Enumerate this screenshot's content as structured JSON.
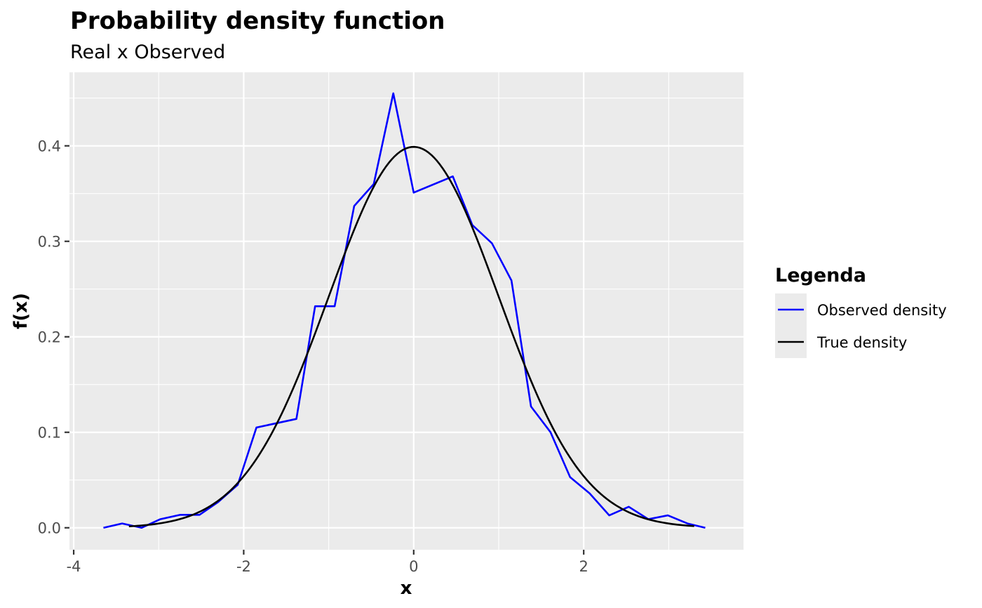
{
  "chart_data": {
    "type": "line",
    "title": "Probability density function",
    "subtitle": "Real x Observed",
    "xlabel": "x",
    "ylabel": "f(x)",
    "xlim": [
      -4.05,
      3.88
    ],
    "ylim": [
      -0.023,
      0.477
    ],
    "x_ticks": [
      -4,
      -2,
      0,
      2
    ],
    "x_tick_labels": [
      "-4",
      "-2",
      "0",
      "2"
    ],
    "y_ticks": [
      0.0,
      0.1,
      0.2,
      0.3,
      0.4
    ],
    "y_tick_labels": [
      "0.0",
      "0.1",
      "0.2",
      "0.3",
      "0.4"
    ],
    "grid": true,
    "legend": {
      "title": "Legenda",
      "position": "right",
      "entries": [
        {
          "label": "Observed density",
          "color": "#0000ff"
        },
        {
          "label": "True density",
          "color": "#000000"
        }
      ]
    },
    "series": [
      {
        "name": "Observed density",
        "color": "#0000ff",
        "points": [
          [
            -3.65,
            0.0
          ],
          [
            -3.43,
            0.0045
          ],
          [
            -3.2,
            0.0
          ],
          [
            -2.98,
            0.009
          ],
          [
            -2.75,
            0.0135
          ],
          [
            -2.52,
            0.0135
          ],
          [
            -2.3,
            0.027
          ],
          [
            -2.07,
            0.045
          ],
          [
            -1.85,
            0.105
          ],
          [
            -1.38,
            0.114
          ],
          [
            -1.16,
            0.232
          ],
          [
            -0.93,
            0.232
          ],
          [
            -0.7,
            0.337
          ],
          [
            -0.47,
            0.36
          ],
          [
            -0.24,
            0.455
          ],
          [
            0.0,
            0.351
          ],
          [
            0.46,
            0.368
          ],
          [
            0.69,
            0.317
          ],
          [
            0.92,
            0.298
          ],
          [
            1.15,
            0.259
          ],
          [
            1.38,
            0.127
          ],
          [
            1.61,
            0.1
          ],
          [
            1.84,
            0.053
          ],
          [
            2.07,
            0.036
          ],
          [
            2.3,
            0.013
          ],
          [
            2.53,
            0.022
          ],
          [
            2.76,
            0.009
          ],
          [
            2.99,
            0.013
          ],
          [
            3.22,
            0.0045
          ],
          [
            3.43,
            0.0
          ]
        ]
      },
      {
        "name": "True density",
        "color": "#000000",
        "function": "normal_pdf",
        "range": [
          -3.35,
          3.3
        ]
      }
    ]
  },
  "colors": {
    "panel_background": "#ebebeb",
    "grid_major": "#ffffff",
    "axis_text": "#4d4d4d",
    "observed": "#0000ff",
    "true": "#000000"
  }
}
